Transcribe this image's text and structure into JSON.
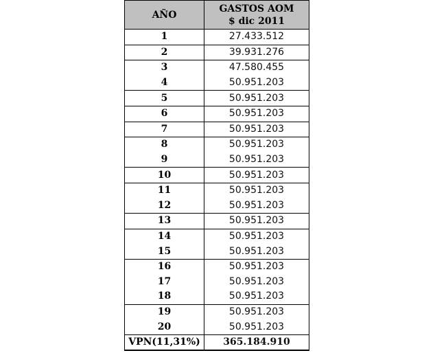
{
  "table": {
    "headers": {
      "year": "AÑO",
      "expenses_line1": "GASTOS AOM",
      "expenses_line2": "$ dic 2011"
    },
    "rows": [
      {
        "year": "1",
        "value": "27.433.512"
      },
      {
        "year": "2",
        "value": "39.931.276"
      },
      {
        "year": "3",
        "value": "47.580.455"
      },
      {
        "year": "4",
        "value": "50.951.203"
      },
      {
        "year": "5",
        "value": "50.951.203"
      },
      {
        "year": "6",
        "value": "50.951.203"
      },
      {
        "year": "7",
        "value": "50.951.203"
      },
      {
        "year": "8",
        "value": "50.951.203"
      },
      {
        "year": "9",
        "value": "50.951.203"
      },
      {
        "year": "10",
        "value": "50.951.203"
      },
      {
        "year": "11",
        "value": "50.951.203"
      },
      {
        "year": "12",
        "value": "50.951.203"
      },
      {
        "year": "13",
        "value": "50.951.203"
      },
      {
        "year": "14",
        "value": "50.951.203"
      },
      {
        "year": "15",
        "value": "50.951.203"
      },
      {
        "year": "16",
        "value": "50.951.203"
      },
      {
        "year": "17",
        "value": "50.951.203"
      },
      {
        "year": "18",
        "value": "50.951.203"
      },
      {
        "year": "19",
        "value": "50.951.203"
      },
      {
        "year": "20",
        "value": "50.951.203"
      }
    ],
    "total": {
      "label": "VPN(11,31%)",
      "value": "365.184.910"
    },
    "header_bg": "#c0c0c0"
  }
}
